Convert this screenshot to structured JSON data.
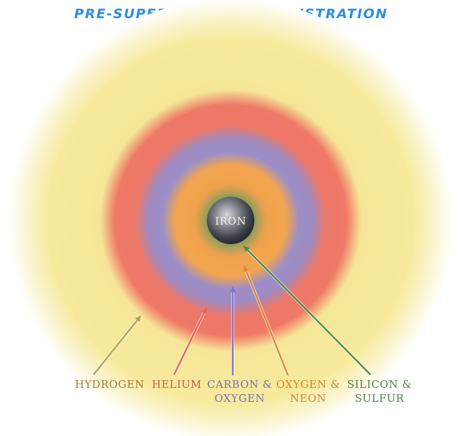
{
  "title": "PRE-SUPERNOVA STAR ILLUSTRATION",
  "colors": {
    "title": "#2b8fe0",
    "hydrogen": "#f6ea9a",
    "helium": "#ee7b67",
    "carbon_oxygen": "#9b8ec8",
    "oxygen_neon": "#f2a54c",
    "silicon_sulfur": "#5b9a5f",
    "iron": "#3a3d44"
  },
  "core": {
    "label": "IRON"
  },
  "layers": [
    {
      "id": "hydrogen",
      "label_lines": [
        "HYDROGEN"
      ],
      "label_color": "#a07a3a",
      "arrow_color": "#b1a25c"
    },
    {
      "id": "helium",
      "label_lines": [
        "HELIUM"
      ],
      "label_color": "#b8634a",
      "arrow_color": "#e6645a"
    },
    {
      "id": "carbon_oxygen",
      "label_lines": [
        "CARBON &",
        "OXYGEN"
      ],
      "label_color": "#7a6eb8",
      "arrow_color": "#7f74cf"
    },
    {
      "id": "oxygen_neon",
      "label_lines": [
        "OXYGEN &",
        "NEON"
      ],
      "label_color": "#d08433",
      "arrow_color": "#d98a3b"
    },
    {
      "id": "silicon_sulfur",
      "label_lines": [
        "SILICON &",
        "SULFUR"
      ],
      "label_color": "#4f7f48",
      "arrow_color": "#4f8a4f"
    }
  ]
}
